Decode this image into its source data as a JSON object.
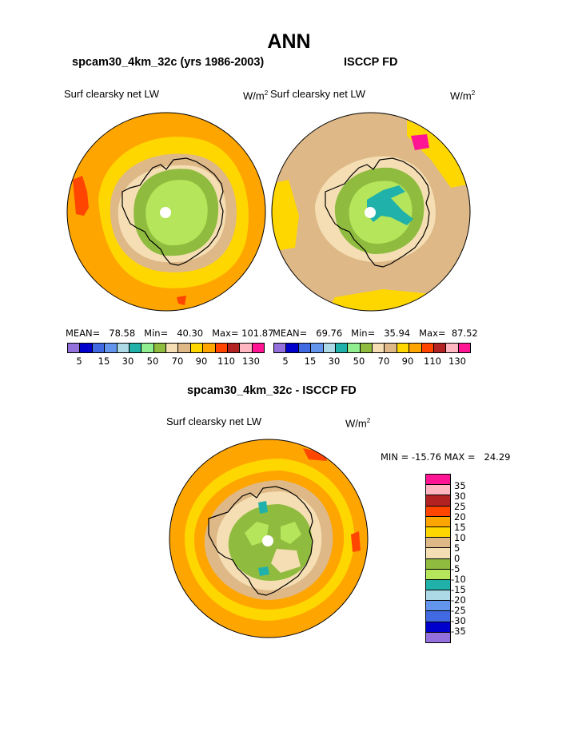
{
  "page": {
    "title": "ANN"
  },
  "panels": [
    {
      "title": "spcam30_4km_32c (yrs 1986-2003)",
      "variable": "Surf clearsky net LW",
      "units_base": "W/m",
      "units_exp": "2",
      "stats": {
        "mean_label": "MEAN=",
        "mean": "78.58",
        "min_label": "Min=",
        "min": "40.30",
        "max_label": "Max=",
        "max": "101.87"
      }
    },
    {
      "title": "ISCCP FD",
      "variable": "Surf clearsky net LW",
      "units_base": "W/m",
      "units_exp": "2",
      "stats": {
        "mean_label": "MEAN=",
        "mean": "69.76",
        "min_label": "Min=",
        "min": "35.94",
        "max_label": "Max=",
        "max": "87.52"
      }
    },
    {
      "title": "spcam30_4km_32c - ISCCP FD",
      "variable": "Surf clearsky net LW",
      "units_base": "W/m",
      "units_exp": "2",
      "stats": {
        "min_label": "MIN =",
        "min": "-15.76",
        "max_label": "MAX =",
        "max": "24.29"
      }
    }
  ],
  "colorbar_top": {
    "colors": [
      "#9370db",
      "#0000cd",
      "#4169e1",
      "#6495ed",
      "#add8e6",
      "#20b2aa",
      "#90ee90",
      "#8fbc3f",
      "#f5deb3",
      "#deb887",
      "#ffd700",
      "#ffa500",
      "#ff4500",
      "#b22222",
      "#ffb6c1",
      "#ff1493"
    ],
    "ticks": [
      "5",
      "15",
      "30",
      "50",
      "70",
      "90",
      "110",
      "130"
    ]
  },
  "colorbar_diff": {
    "colors": [
      "#ff1493",
      "#ffb6c1",
      "#b22222",
      "#ff4500",
      "#ffa500",
      "#ffd700",
      "#deb887",
      "#f5deb3",
      "#8fbc3f",
      "#b5e55a",
      "#20b2aa",
      "#add8e6",
      "#6495ed",
      "#4169e1",
      "#0000cd",
      "#9370db"
    ],
    "ticks": [
      "35",
      "30",
      "25",
      "20",
      "15",
      "10",
      "5",
      "0",
      "-5",
      "-10",
      "-15",
      "-20",
      "-25",
      "-30",
      "-35"
    ]
  },
  "legend_palette": {
    "orange": "#ffa500",
    "gold": "#ffd700",
    "tan": "#deb887",
    "wheat": "#f5deb3",
    "green": "#8fbc3f",
    "light_green": "#b5e55a",
    "teal": "#20b2aa",
    "red": "#ff4500"
  }
}
